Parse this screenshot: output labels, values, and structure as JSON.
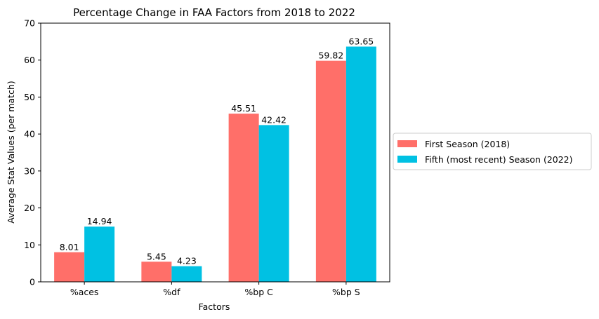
{
  "chart_data": {
    "type": "bar",
    "title": "Percentage Change in FAA Factors from 2018 to 2022",
    "xlabel": "Factors",
    "ylabel": "Average Stat Values (per match)",
    "categories": [
      "%aces",
      "%df",
      "%bp C",
      "%bp S"
    ],
    "ylim": [
      0,
      70
    ],
    "yticks": [
      0,
      10,
      20,
      30,
      40,
      50,
      60,
      70
    ],
    "grid": false,
    "legend_position": "right, outside plot",
    "series": [
      {
        "name": "First Season (2018)",
        "color": "#ff6f69",
        "values": [
          8.01,
          5.45,
          45.51,
          59.82
        ]
      },
      {
        "name": "Fifth (most recent) Season (2022)",
        "color": "#00c1e3",
        "values": [
          14.94,
          4.23,
          42.42,
          63.65
        ]
      }
    ]
  }
}
